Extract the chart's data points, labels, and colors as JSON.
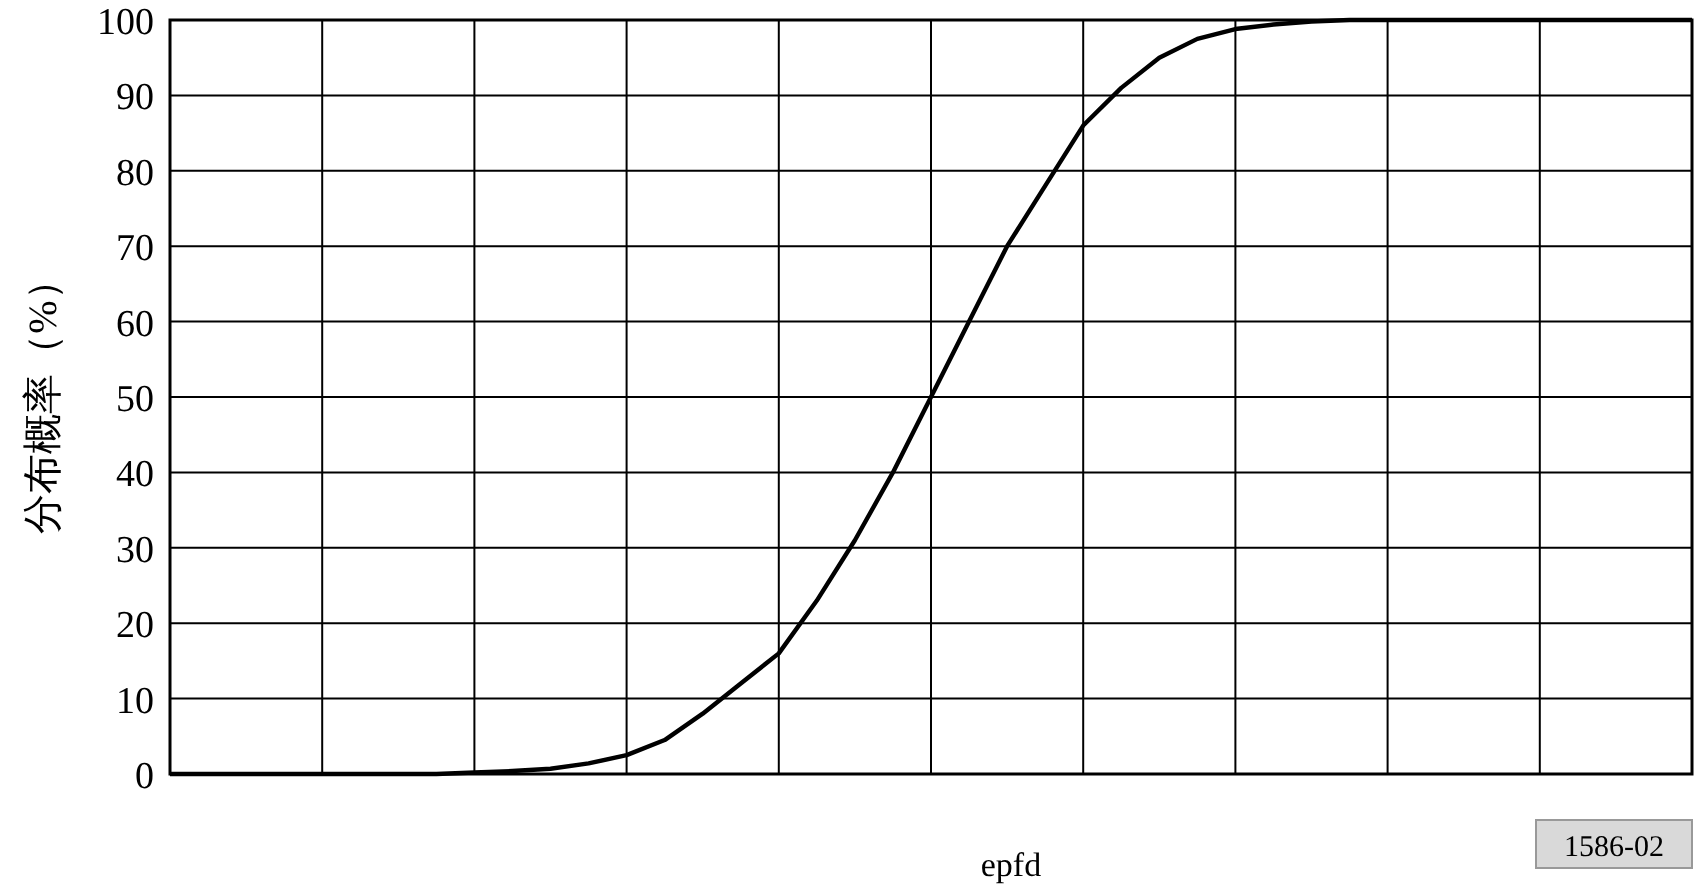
{
  "chart_data": {
    "type": "line",
    "xlabel": "epfd",
    "ylabel": "分布概率（%）",
    "annotations": [
      "1586-02"
    ],
    "categories": [
      null,
      null,
      null,
      null,
      null,
      null,
      null,
      null,
      null,
      null,
      null,
      null,
      null,
      null,
      null,
      null,
      null,
      null,
      null,
      null,
      null,
      null,
      null,
      null,
      null,
      null,
      null,
      null,
      null,
      null,
      null,
      null,
      null,
      null,
      null,
      null,
      null,
      null,
      null,
      null,
      null
    ],
    "series": [
      {
        "color": "#000000",
        "values": [
          0,
          0,
          0,
          0,
          0,
          0,
          0,
          0,
          0.2,
          0.4,
          0.7,
          1.4,
          2.5,
          4.5,
          8,
          12,
          16,
          23,
          31,
          40,
          50,
          60,
          70,
          78,
          86,
          91,
          95,
          97.5,
          98.8,
          99.4,
          99.8,
          100,
          100,
          100,
          100,
          100,
          100,
          100,
          100,
          100,
          100
        ]
      }
    ],
    "ylim": [
      0,
      100
    ],
    "yticks": [
      0,
      10,
      20,
      30,
      40,
      50,
      60,
      70,
      80,
      90,
      100
    ],
    "grid": true
  }
}
